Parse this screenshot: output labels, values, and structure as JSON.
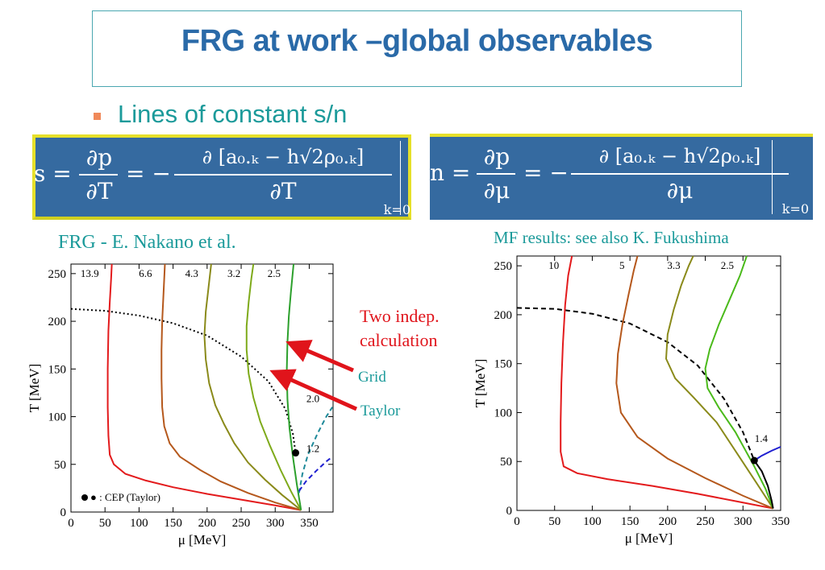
{
  "slide": {
    "title": "FRG at work –global observables",
    "bullet": "Lines of constant s/n",
    "formula_s": {
      "lhs": "s =",
      "num1": "∂p",
      "den1": "∂T",
      "eq2": "= −",
      "num2": "∂ [a₀.ₖ − h√2ρ₀.ₖ]",
      "den2": "∂T",
      "sub": "k=0"
    },
    "formula_n": {
      "lhs": "n =",
      "num1": "∂p",
      "den1": "∂μ",
      "eq2": "= −",
      "num2": "∂ [a₀.ₖ − h√2ρ₀.ₖ]",
      "den2": "∂μ",
      "sub": "k=0"
    },
    "left_caption": "FRG - E. Nakano et al.",
    "right_caption": "MF results: see also K. Fukushima",
    "annotation_line1": "Two indep.",
    "annotation_line2": "calculation",
    "grid_label": "Grid",
    "taylor_label": "Taylor",
    "arrow_color": "#e0141b",
    "formula_bg": "#356aa0",
    "formula_border": "#e6e02a"
  },
  "chart_data": [
    {
      "type": "line",
      "xlabel": "μ [MeV]",
      "ylabel": "T [MeV]",
      "xlim": [
        0,
        385
      ],
      "ylim": [
        0,
        260
      ],
      "xticks": [
        0,
        50,
        100,
        150,
        200,
        250,
        300,
        350
      ],
      "yticks": [
        0,
        50,
        100,
        150,
        200,
        250
      ],
      "legend": "● : CEP (Taylor)",
      "cep": {
        "x": 330,
        "y": 62
      },
      "phase_boundary": {
        "style": "dotted",
        "points": [
          [
            0,
            213
          ],
          [
            50,
            211
          ],
          [
            100,
            206
          ],
          [
            150,
            198
          ],
          [
            200,
            185
          ],
          [
            250,
            163
          ],
          [
            290,
            137
          ],
          [
            315,
            108
          ],
          [
            326,
            82
          ],
          [
            330,
            62
          ]
        ]
      },
      "series": [
        {
          "name": "13.9",
          "color": "#e31a1c",
          "points": [
            [
              338,
              2
            ],
            [
              300,
              7
            ],
            [
              250,
              13
            ],
            [
              200,
              19
            ],
            [
              150,
              26
            ],
            [
              110,
              33
            ],
            [
              80,
              40
            ],
            [
              63,
              50
            ],
            [
              57,
              60
            ],
            [
              55,
              80
            ],
            [
              54,
              110
            ],
            [
              54,
              150
            ],
            [
              55,
              190
            ],
            [
              57,
              220
            ],
            [
              59,
              245
            ],
            [
              60,
              260
            ]
          ]
        },
        {
          "name": "6.6",
          "color": "#b5581c",
          "points": [
            [
              338,
              2
            ],
            [
              300,
              10
            ],
            [
              260,
              20
            ],
            [
              220,
              32
            ],
            [
              190,
              44
            ],
            [
              160,
              58
            ],
            [
              145,
              72
            ],
            [
              137,
              90
            ],
            [
              134,
              110
            ],
            [
              133,
              140
            ],
            [
              133,
              170
            ],
            [
              134,
              200
            ],
            [
              136,
              230
            ],
            [
              138,
              260
            ]
          ]
        },
        {
          "name": "4.3",
          "color": "#8a8a1a",
          "points": [
            [
              338,
              2
            ],
            [
              310,
              18
            ],
            [
              285,
              34
            ],
            [
              260,
              52
            ],
            [
              240,
              72
            ],
            [
              225,
              92
            ],
            [
              212,
              112
            ],
            [
              203,
              135
            ],
            [
              198,
              160
            ],
            [
              196,
              185
            ],
            [
              198,
              210
            ],
            [
              202,
              235
            ],
            [
              206,
              260
            ]
          ]
        },
        {
          "name": "3.2",
          "color": "#7eaa1a",
          "points": [
            [
              338,
              2
            ],
            [
              323,
              22
            ],
            [
              308,
              44
            ],
            [
              292,
              70
            ],
            [
              278,
              95
            ],
            [
              268,
              120
            ],
            [
              261,
              145
            ],
            [
              258,
              170
            ],
            [
              258,
              195
            ],
            [
              261,
              220
            ],
            [
              265,
              245
            ],
            [
              268,
              260
            ]
          ]
        },
        {
          "name": "2.5",
          "color": "#2ca02c",
          "points": [
            [
              338,
              2
            ],
            [
              332,
              28
            ],
            [
              326,
              58
            ],
            [
              321,
              88
            ],
            [
              318,
              118
            ],
            [
              317,
              148
            ],
            [
              318,
              178
            ],
            [
              320,
              205
            ],
            [
              323,
              230
            ],
            [
              327,
              260
            ]
          ]
        },
        {
          "name": "2.0",
          "color": "#1f8a9a",
          "dashed": true,
          "points": [
            [
              335,
              20
            ],
            [
              340,
              40
            ],
            [
              348,
              60
            ],
            [
              362,
              82
            ],
            [
              375,
              100
            ],
            [
              384,
              110
            ]
          ]
        },
        {
          "name": "1.2",
          "color": "#1f1fd0",
          "dashed": true,
          "points": [
            [
              335,
              22
            ],
            [
              345,
              32
            ],
            [
              360,
              43
            ],
            [
              375,
              53
            ],
            [
              384,
              58
            ]
          ]
        }
      ]
    },
    {
      "type": "line",
      "xlabel": "μ [MeV]",
      "ylabel": "T [MeV]",
      "xlim": [
        0,
        350
      ],
      "ylim": [
        0,
        260
      ],
      "xticks": [
        0,
        50,
        100,
        150,
        200,
        250,
        300,
        350
      ],
      "yticks": [
        0,
        50,
        100,
        150,
        200,
        250
      ],
      "cep": {
        "x": 315,
        "y": 51
      },
      "phase_boundary": {
        "style": "dashed",
        "points": [
          [
            0,
            207
          ],
          [
            50,
            206
          ],
          [
            100,
            201
          ],
          [
            150,
            191
          ],
          [
            200,
            172
          ],
          [
            240,
            148
          ],
          [
            275,
            114
          ],
          [
            300,
            80
          ],
          [
            315,
            51
          ]
        ]
      },
      "series": [
        {
          "name": "10",
          "color": "#e31a1c",
          "points": [
            [
              340,
              2
            ],
            [
              300,
              8
            ],
            [
              240,
              17
            ],
            [
              180,
              25
            ],
            [
              120,
              32
            ],
            [
              80,
              38
            ],
            [
              62,
              45
            ],
            [
              58,
              60
            ],
            [
              58,
              90
            ],
            [
              59,
              130
            ],
            [
              61,
              170
            ],
            [
              64,
              210
            ],
            [
              68,
              240
            ],
            [
              73,
              260
            ]
          ]
        },
        {
          "name": "5",
          "color": "#b5581c",
          "points": [
            [
              340,
              2
            ],
            [
              300,
              15
            ],
            [
              250,
              33
            ],
            [
              200,
              53
            ],
            [
              160,
              75
            ],
            [
              138,
              100
            ],
            [
              132,
              130
            ],
            [
              134,
              160
            ],
            [
              140,
              190
            ],
            [
              148,
              220
            ],
            [
              155,
              245
            ],
            [
              160,
              260
            ]
          ]
        },
        {
          "name": "3.3",
          "color": "#8a8a1a",
          "points": [
            [
              340,
              2
            ],
            [
              318,
              28
            ],
            [
              295,
              55
            ],
            [
              265,
              90
            ],
            [
              235,
              115
            ],
            [
              210,
              135
            ],
            [
              198,
              155
            ],
            [
              200,
              180
            ],
            [
              208,
              205
            ],
            [
              218,
              230
            ],
            [
              228,
              250
            ],
            [
              234,
              260
            ]
          ]
        },
        {
          "name": "2.5",
          "color": "#4aba1a",
          "points": [
            [
              340,
              2
            ],
            [
              330,
              22
            ],
            [
              315,
              45
            ],
            [
              290,
              80
            ],
            [
              268,
              105
            ],
            [
              253,
              125
            ],
            [
              250,
              145
            ],
            [
              256,
              165
            ],
            [
              268,
              190
            ],
            [
              282,
              215
            ],
            [
              296,
              240
            ],
            [
              305,
              260
            ]
          ]
        },
        {
          "name": "1.4",
          "color": "#1f1fd0",
          "points": [
            [
              315,
              51
            ],
            [
              325,
              56
            ],
            [
              338,
              61
            ],
            [
              350,
              65
            ]
          ]
        },
        {
          "name": "",
          "color": "#000000",
          "points": [
            [
              315,
              51
            ],
            [
              325,
              40
            ],
            [
              333,
              25
            ],
            [
              338,
              10
            ],
            [
              340,
              2
            ]
          ]
        }
      ]
    }
  ]
}
